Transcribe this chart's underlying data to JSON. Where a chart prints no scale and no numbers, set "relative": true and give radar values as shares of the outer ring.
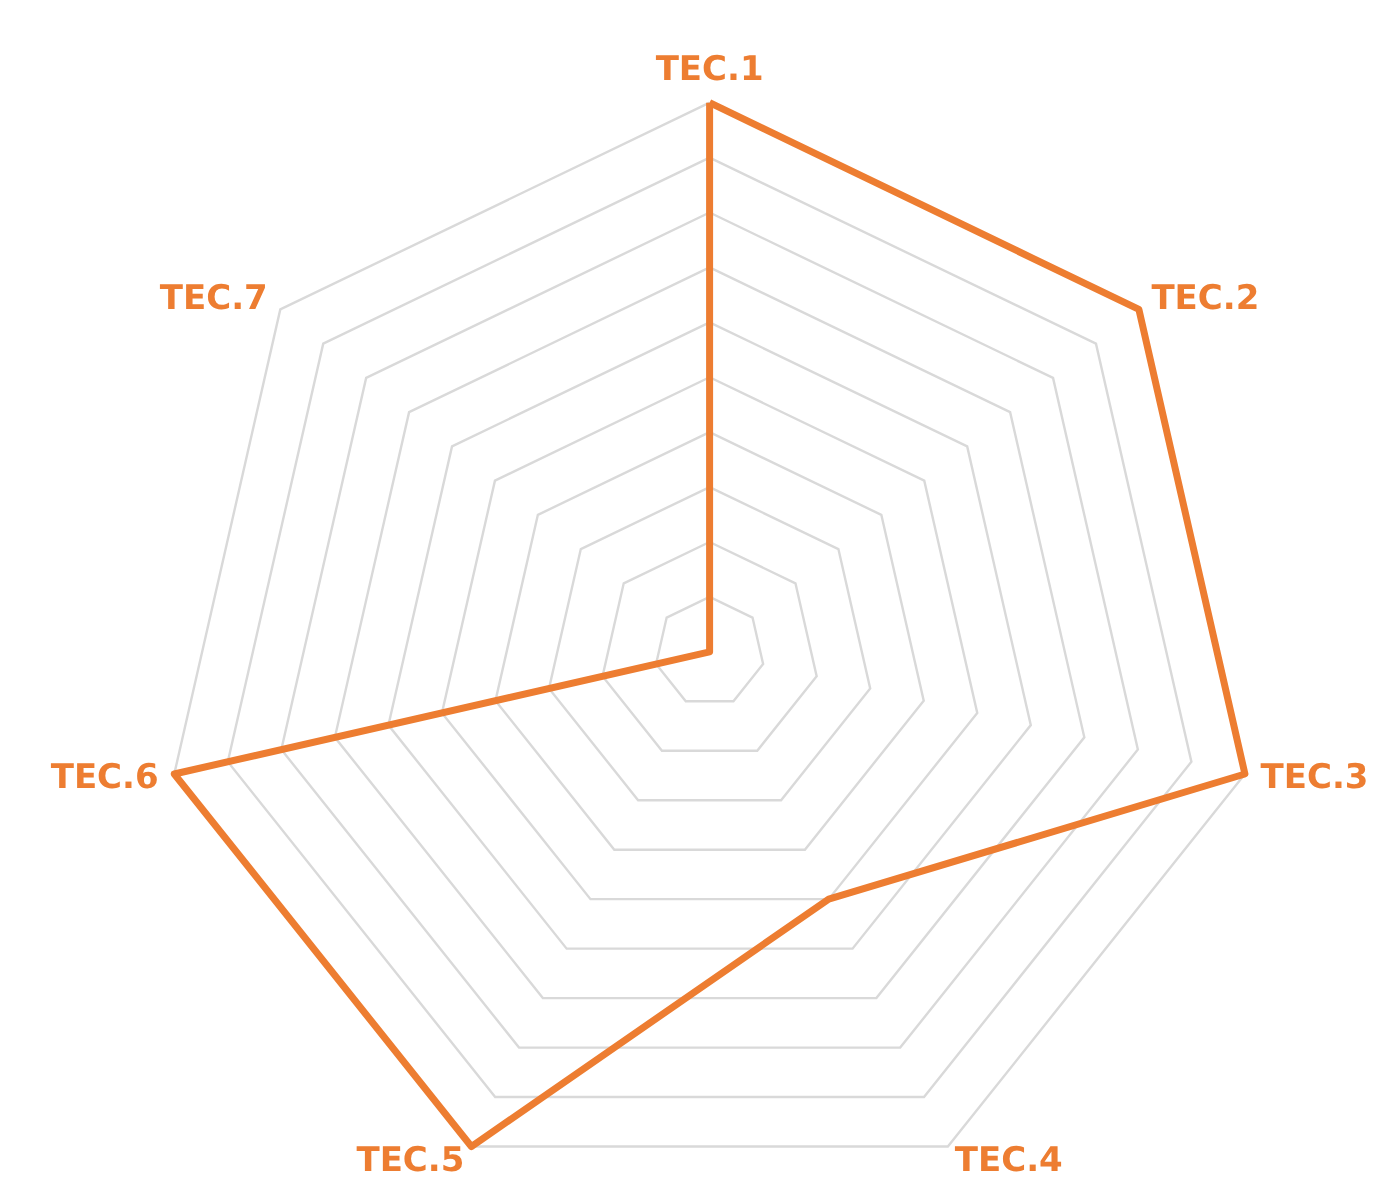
{
  "chart_data": {
    "type": "radar",
    "relative": true,
    "categories": [
      "TEC.1",
      "TEC.2",
      "TEC.3",
      "TEC.4",
      "TEC.5",
      "TEC.6",
      "TEC.7"
    ],
    "series": [
      {
        "color": "#ed7d31",
        "values": [
          1,
          1,
          1,
          0.5,
          1,
          1,
          0
        ]
      }
    ]
  }
}
